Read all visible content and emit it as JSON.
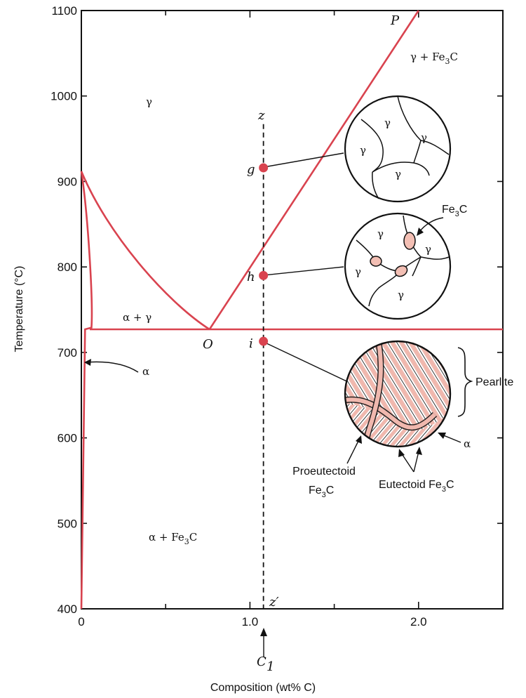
{
  "chart_data": {
    "type": "line",
    "xlabel": "Composition (wt% C)",
    "ylabel": "Temperature (°C)",
    "xlim": [
      0,
      2.5
    ],
    "ylim": [
      400,
      1100
    ],
    "x_ticks": [
      "0",
      "1.0",
      "2.0"
    ],
    "y_ticks": [
      "400",
      "500",
      "600",
      "700",
      "800",
      "900",
      "1000",
      "1100"
    ],
    "series": [
      {
        "values": [
          [
            0,
            912
          ],
          [
            0.2,
            850
          ],
          [
            0.4,
            796
          ],
          [
            0.6,
            752
          ],
          [
            0.76,
            727
          ]
        ]
      },
      {
        "values": [
          [
            0.76,
            727
          ],
          [
            2.0,
            1100
          ]
        ]
      },
      {
        "values": [
          [
            0.05,
            727
          ],
          [
            2.5,
            727
          ]
        ]
      },
      {
        "values": [
          [
            0,
            912
          ],
          [
            0.04,
            800
          ],
          [
            0.06,
            730
          ],
          [
            0.022,
            727
          ],
          [
            0,
            400
          ]
        ]
      }
    ],
    "vertical_line": {
      "x": 1.08,
      "top_label": "z",
      "bottom_label": "z′"
    },
    "composition_marker": {
      "x": 1.08,
      "label_main": "C",
      "label_sub": "1"
    },
    "points": [
      {
        "label": "g",
        "x": 1.08,
        "y": 916
      },
      {
        "label": "h",
        "x": 1.08,
        "y": 790
      },
      {
        "label": "i",
        "x": 1.08,
        "y": 713
      }
    ],
    "point_labels": {
      "O": "O",
      "P": "P"
    },
    "phase_labels": {
      "gamma": "γ",
      "gamma_fe3c": "γ + Fe",
      "alpha_gamma": "α + γ",
      "alpha_fe3c": "α + Fe",
      "alpha": "α",
      "sub3": "3",
      "C": "C"
    },
    "micro_labels": {
      "fe3c": "Fe",
      "pearlite": "Pearlite",
      "alpha": "α",
      "proeutectoid_line1": "Proeutectoid",
      "proeutectoid_line2": "Fe",
      "eutectoid": "Eutectoid Fe",
      "gamma": "γ"
    },
    "colors": {
      "phase_boundary": "#d9434f",
      "point": "#d9434f",
      "fe3c_particle": "#f3bfb4",
      "pearlite_fe3c": "#f0b8ae"
    }
  }
}
